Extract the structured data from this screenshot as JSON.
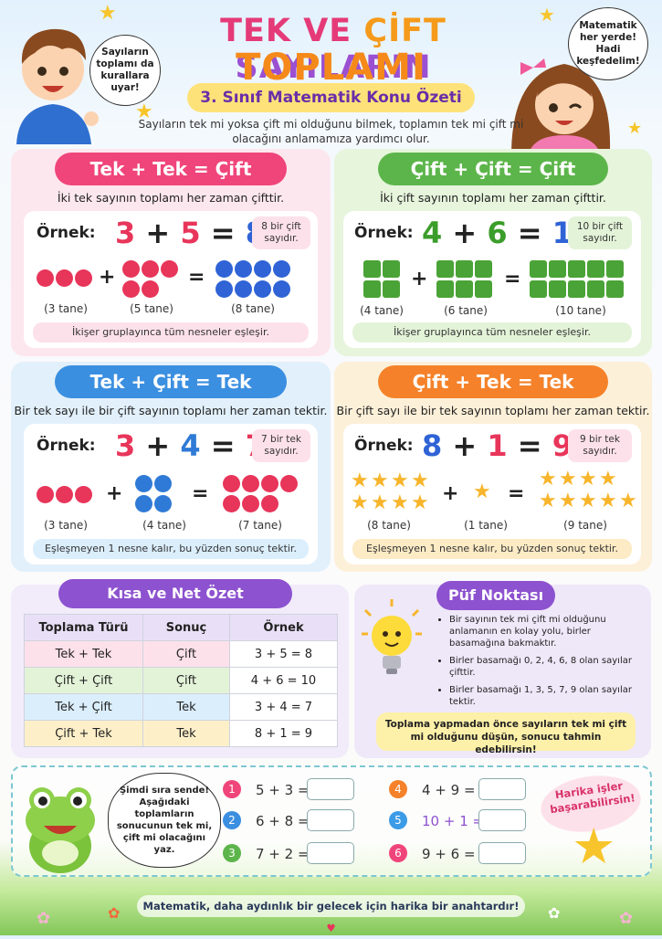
{
  "header": {
    "title_part1": "TEK VE ",
    "title_part2": "ÇİFT ",
    "title_part3": "SAYILARIN",
    "title_line2": "TOPLAMI",
    "subtitle": "3. Sınıf Matematik Konu Özeti",
    "intro": "Sayıların tek mi yoksa çift mi olduğunu bilmek, toplamın tek mi çift mi olacağını anlamamıza yardımcı olur.",
    "boy_bubble": "Sayıların toplamı da kurallara uyar!",
    "girl_bubble": "Matematik her yerde! Hadi keşfedelim!"
  },
  "cards": [
    {
      "title": "Tek + Tek = Çift",
      "desc": "İki tek sayının toplamı her zaman çifttir.",
      "example_label": "Örnek:",
      "a": "3",
      "op": "+",
      "b": "5",
      "eq": "=",
      "r": "8",
      "note": "8 bir çift sayıdır.",
      "c1": "(3 tane)",
      "c2": "(5 tane)",
      "c3": "(8 tane)",
      "footer": "İkişer gruplayınca tüm nesneler eşleşir.",
      "colors": {
        "main": "#f0457a",
        "bg": "#fde7ee",
        "a": "#e8355a",
        "b": "#e8355a",
        "r": "#2f63d6"
      }
    },
    {
      "title": "Çift + Çift = Çift",
      "desc": "İki çift sayının toplamı her zaman çifttir.",
      "example_label": "Örnek:",
      "a": "4",
      "op": "+",
      "b": "6",
      "eq": "=",
      "r": "10",
      "note": "10 bir çift sayıdır.",
      "c1": "(4 tane)",
      "c2": "(6 tane)",
      "c3": "(10 tane)",
      "footer": "İkişer gruplayınca tüm nesneler eşleşir.",
      "colors": {
        "main": "#5cb54a",
        "bg": "#e6f5dc"
      }
    },
    {
      "title": "Tek + Çift = Tek",
      "desc": "Bir tek sayı ile bir çift sayının toplamı her zaman tektir.",
      "example_label": "Örnek:",
      "a": "3",
      "op": "+",
      "b": "4",
      "eq": "=",
      "r": "7",
      "note": "7 bir tek sayıdır.",
      "c1": "(3 tane)",
      "c2": "(4 tane)",
      "c3": "(7 tane)",
      "footer": "Eşleşmeyen 1 nesne kalır, bu yüzden sonuç tektir.",
      "colors": {
        "main": "#3b8fe0",
        "bg": "#e2f0fb"
      }
    },
    {
      "title": "Çift + Tek = Tek",
      "desc": "Bir çift sayı ile bir tek sayının toplamı her zaman tektir.",
      "example_label": "Örnek:",
      "a": "8",
      "op": "+",
      "b": "1",
      "eq": "=",
      "r": "9",
      "note": "9 bir tek sayıdır.",
      "c1": "(8 tane)",
      "c2": "(1 tane)",
      "c3": "(9 tane)",
      "footer": "Eşleşmeyen 1 nesne kalır, bu yüzden sonuç tektir.",
      "colors": {
        "main": "#f5822a",
        "bg": "#fdf0d9"
      }
    }
  ],
  "summary": {
    "title": "Kısa ve Net Özet",
    "headers": [
      "Toplama Türü",
      "Sonuç",
      "Örnek"
    ],
    "rows": [
      [
        "Tek + Tek",
        "Çift",
        "3 + 5 = 8"
      ],
      [
        "Çift + Çift",
        "Çift",
        "4 + 6 = 10"
      ],
      [
        "Tek + Çift",
        "Tek",
        "3 + 4 = 7"
      ],
      [
        "Çift + Tek",
        "Tek",
        "8 + 1 = 9"
      ]
    ]
  },
  "tip": {
    "title": "Püf Noktası",
    "bullets": [
      "Bir sayının tek mi çift mi olduğunu anlamanın en kolay yolu, birler basamağına bakmaktır.",
      "Birler basamağı 0, 2, 4, 6, 8 olan sayılar çifttir.",
      "Birler basamağı 1, 3, 5, 7, 9 olan sayılar tektir."
    ],
    "callout": "Toplama yapmadan önce sayıların tek mi çift mi olduğunu düşün, sonucu tahmin edebilirsin!"
  },
  "practice": {
    "frog_bubble": "Şimdi sıra sende! Aşağıdaki toplamların sonucunun tek mi, çift mi olacağını yaz.",
    "items": [
      {
        "n": "1",
        "q": "5 + 3 ="
      },
      {
        "n": "2",
        "q": "6 + 8 ="
      },
      {
        "n": "3",
        "q": "7 + 2 ="
      },
      {
        "n": "4",
        "q": "4 + 9 ="
      },
      {
        "n": "5",
        "q": "10 + 1 ="
      },
      {
        "n": "6",
        "q": "9 + 6 ="
      }
    ],
    "badge": "Harika işler başarabilirsin!"
  },
  "footer": {
    "text": "Matematik, daha aydınlık bir gelecek için harika bir anahtardır!"
  }
}
